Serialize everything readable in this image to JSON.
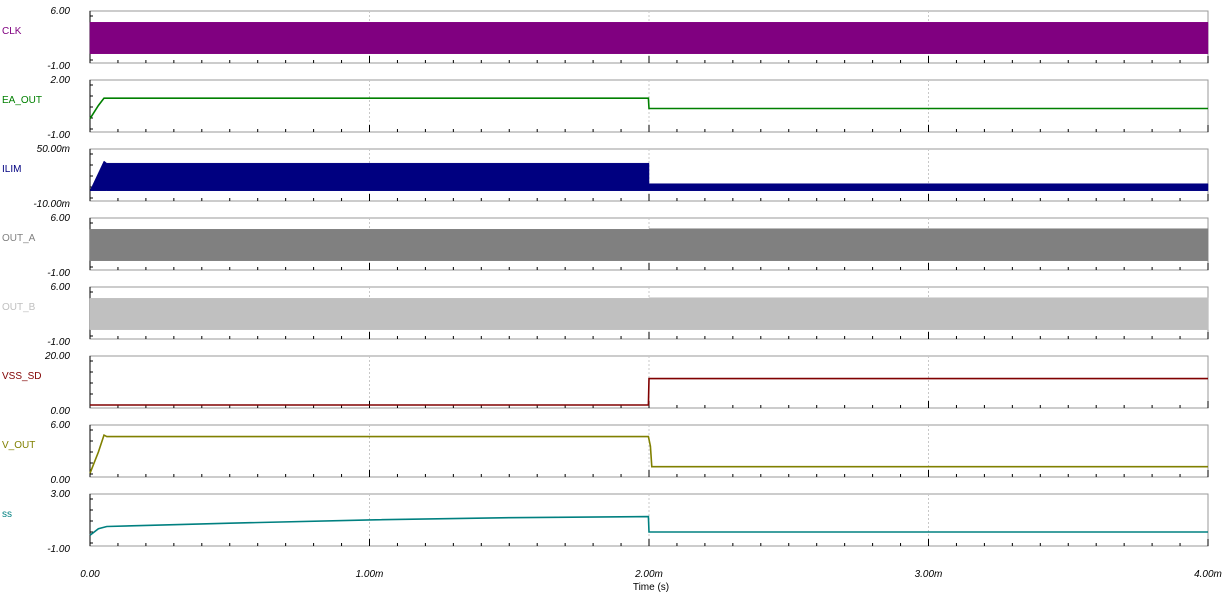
{
  "chart_data": {
    "type": "line",
    "xlabel": "Time (s)",
    "x_unit_note": "time in ms",
    "xlim": [
      0,
      4
    ],
    "x_ticks": [
      0,
      1,
      2,
      3,
      4
    ],
    "x_tick_labels": [
      "0.00",
      "1.00m",
      "2.00m",
      "3.00m",
      "4.00m"
    ],
    "grid": true,
    "panels": [
      {
        "name": "CLK",
        "color": "#800080",
        "kind": "band",
        "ylim": [
          -1,
          6
        ],
        "ylim_labels": [
          "6.00",
          "-1.00"
        ],
        "bands": [
          {
            "x": [
              0,
              4
            ],
            "low": 0,
            "high": 5
          }
        ]
      },
      {
        "name": "EA_OUT",
        "color": "#008000",
        "kind": "line",
        "ylim": [
          -1,
          2
        ],
        "ylim_labels": [
          "2.00",
          "-1.00"
        ],
        "x": [
          0,
          0.03,
          0.05,
          0.06,
          1.0,
          1.998,
          2.0,
          4.0
        ],
        "y": [
          -0.3,
          0.6,
          1.1,
          1.1,
          1.1,
          1.1,
          0.4,
          0.4
        ]
      },
      {
        "name": "ILIM",
        "color": "#000080",
        "kind": "band",
        "ylim": [
          -10,
          50
        ],
        "ylim_labels": [
          "50.00m",
          "-10.00m"
        ],
        "bands": [
          {
            "x": [
              0,
              0.05,
              0.06,
              2.0
            ],
            "high": [
              0.0,
              40.5,
              37.5,
              37.5
            ],
            "low": [
              0.0,
              0.0,
              0.0,
              0.0
            ]
          },
          {
            "x": [
              2.0,
              4.0
            ],
            "high": [
              9.5,
              9.5
            ],
            "low": [
              0.0,
              0.0
            ]
          }
        ]
      },
      {
        "name": "OUT_A",
        "color": "#808080",
        "kind": "band",
        "ylim": [
          -1,
          6
        ],
        "ylim_labels": [
          "6.00",
          "-1.00"
        ],
        "bands": [
          {
            "x": [
              0,
              2.0
            ],
            "low": 0,
            "high": 5
          },
          {
            "x": [
              2.0,
              4.0
            ],
            "low": 0,
            "high": 5.1
          }
        ]
      },
      {
        "name": "OUT_B",
        "color": "#c0c0c0",
        "kind": "band",
        "ylim": [
          -1,
          6
        ],
        "ylim_labels": [
          "6.00",
          "-1.00"
        ],
        "bands": [
          {
            "x": [
              0,
              2.0
            ],
            "low": 0,
            "high": 5
          },
          {
            "x": [
              2.0,
              4.0
            ],
            "low": 0,
            "high": 5.1
          }
        ]
      },
      {
        "name": "VSS_SD",
        "color": "#800000",
        "kind": "line",
        "ylim": [
          0,
          20
        ],
        "ylim_labels": [
          "20.00",
          "0.00"
        ],
        "x": [
          0,
          1.998,
          2.0,
          4.0
        ],
        "y": [
          0,
          0,
          12,
          12
        ]
      },
      {
        "name": "V_OUT",
        "color": "#808000",
        "kind": "line",
        "ylim": [
          0,
          6
        ],
        "ylim_labels": [
          "6.00",
          "0.00"
        ],
        "x": [
          0,
          0.03,
          0.05,
          0.06,
          0.1,
          1.0,
          1.998,
          2.005,
          2.01,
          4.0
        ],
        "y": [
          0.1,
          3.0,
          5.3,
          5.1,
          5.1,
          5.1,
          5.1,
          3.8,
          1.0,
          1.0
        ]
      },
      {
        "name": "ss",
        "color": "#008080",
        "kind": "line",
        "ylim": [
          -1,
          3
        ],
        "ylim_labels": [
          "3.00",
          "-1.00"
        ],
        "x": [
          0,
          0.03,
          0.06,
          0.2,
          0.5,
          1.0,
          1.5,
          1.998,
          2.0,
          4.0
        ],
        "y": [
          -0.3,
          0.3,
          0.5,
          0.6,
          0.8,
          1.1,
          1.3,
          1.4,
          0.0,
          0.0
        ]
      }
    ]
  }
}
